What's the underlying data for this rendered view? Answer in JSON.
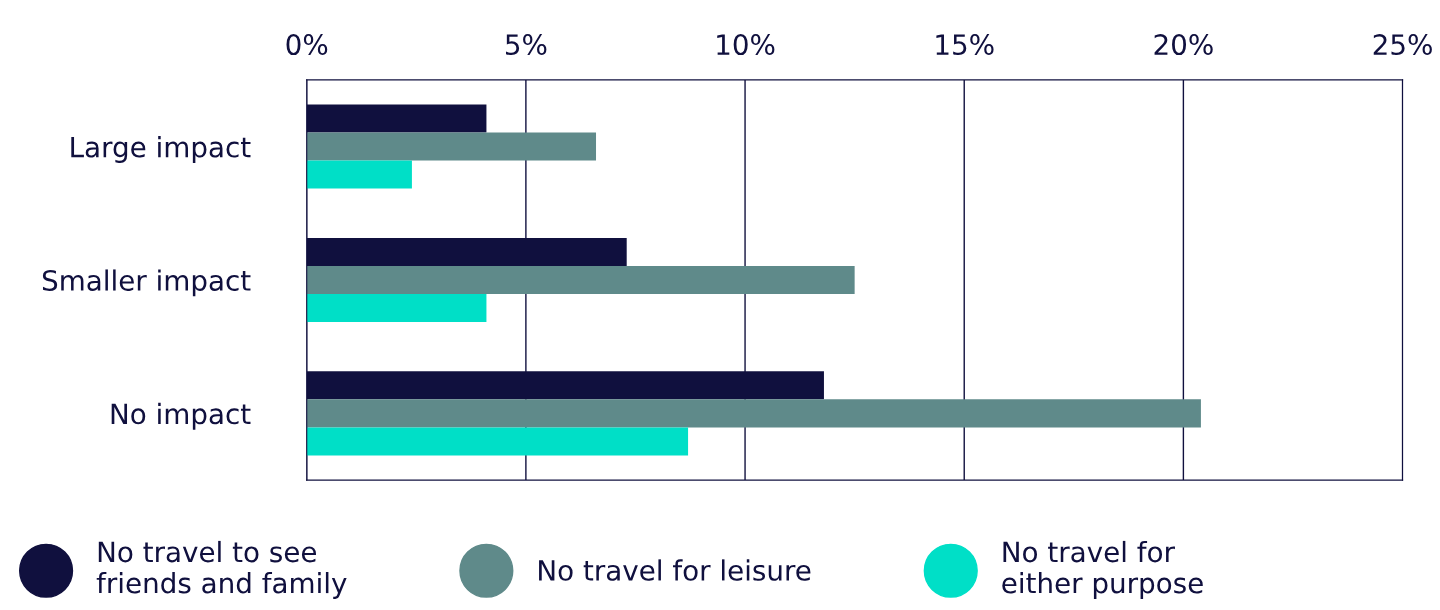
{
  "chart_data": {
    "type": "bar",
    "orientation": "horizontal",
    "categories": [
      "Large impact",
      "Smaller impact",
      "No impact"
    ],
    "series": [
      {
        "name": "No travel to see\nfriends and family",
        "color": "#10103e",
        "values": [
          4.1,
          7.3,
          11.8
        ]
      },
      {
        "name": "No travel for leisure",
        "color": "#5f8a8a",
        "values": [
          6.6,
          12.5,
          20.4
        ]
      },
      {
        "name": "No travel for\neither purpose",
        "color": "#00dfc7",
        "values": [
          2.4,
          4.1,
          8.7
        ]
      }
    ],
    "xlim": [
      0,
      25
    ],
    "xticks": [
      {
        "value": 0,
        "label": "0%"
      },
      {
        "value": 5,
        "label": "5%"
      },
      {
        "value": 10,
        "label": "10%"
      },
      {
        "value": 15,
        "label": "15%"
      },
      {
        "value": 20,
        "label": "20%"
      },
      {
        "value": 25,
        "label": "25%"
      }
    ],
    "grid": "x",
    "legend": "bottom"
  }
}
